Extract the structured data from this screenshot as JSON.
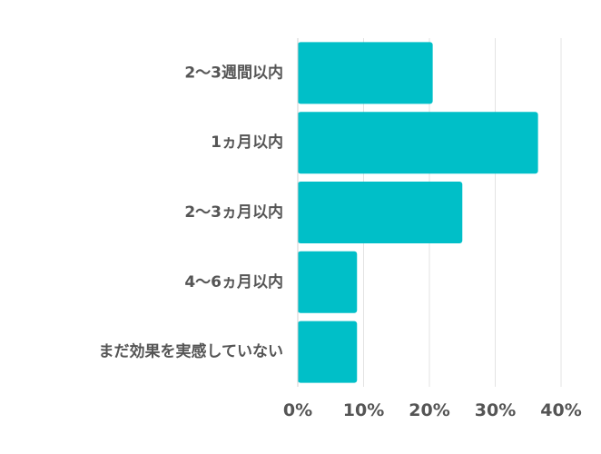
{
  "chart_data": {
    "type": "bar",
    "orientation": "horizontal",
    "categories": [
      "2〜3週間以内",
      "1ヵ月以内",
      "2〜3ヵ月以内",
      "4〜6ヵ月以内",
      "まだ効果を実感していない"
    ],
    "values": [
      20.5,
      36.5,
      25,
      9,
      9
    ],
    "x_unit": "%",
    "xlim": [
      0,
      40
    ],
    "xticks": [
      0,
      10,
      20,
      30,
      40
    ],
    "xtick_labels": [
      "0%",
      "10%",
      "20%",
      "30%",
      "40%"
    ],
    "grid": true,
    "title": "",
    "xlabel": "",
    "ylabel": ""
  },
  "colors": {
    "bar": "#00BFC8",
    "grid": "#E3E3E3",
    "axis": "#D0D0D0",
    "text": "#555555"
  }
}
